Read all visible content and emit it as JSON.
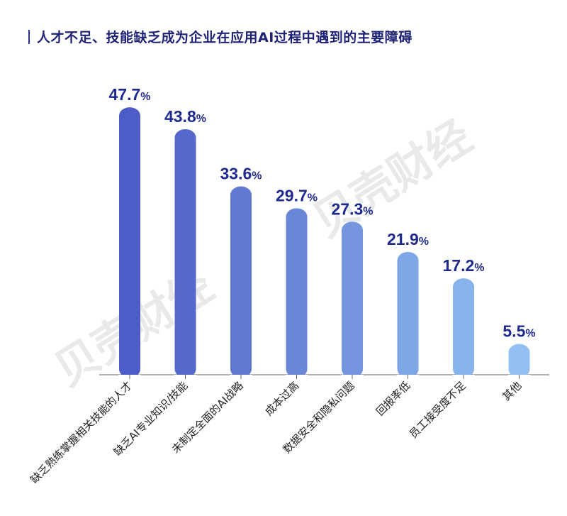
{
  "title": "人才不足、技能缺乏成为企业在应用AI过程中遇到的主要障碍",
  "watermark": "贝壳财经",
  "chart_data": {
    "type": "bar",
    "title": "人才不足、技能缺乏成为企业在应用AI过程中遇到的主要障碍",
    "categories": [
      "缺乏熟练掌握相关技能的人才",
      "缺乏AI专业知识/技能",
      "未制定全面的AI战略",
      "成本过高",
      "数据安全和隐私问题",
      "回报率低",
      "员工接受度不足",
      "其他"
    ],
    "values": [
      47.7,
      43.8,
      33.6,
      29.7,
      27.3,
      21.9,
      17.2,
      5.5
    ],
    "value_labels": [
      "47.7",
      "43.8",
      "33.6",
      "29.7",
      "27.3",
      "21.9",
      "17.2",
      "5.5"
    ],
    "unit": "%",
    "colors": [
      "#4e5cc8",
      "#5768cc",
      "#6279d2",
      "#6a86d8",
      "#7595df",
      "#7ea6e6",
      "#88b4ee",
      "#92c0f4"
    ],
    "grid": false,
    "legend": "none"
  }
}
